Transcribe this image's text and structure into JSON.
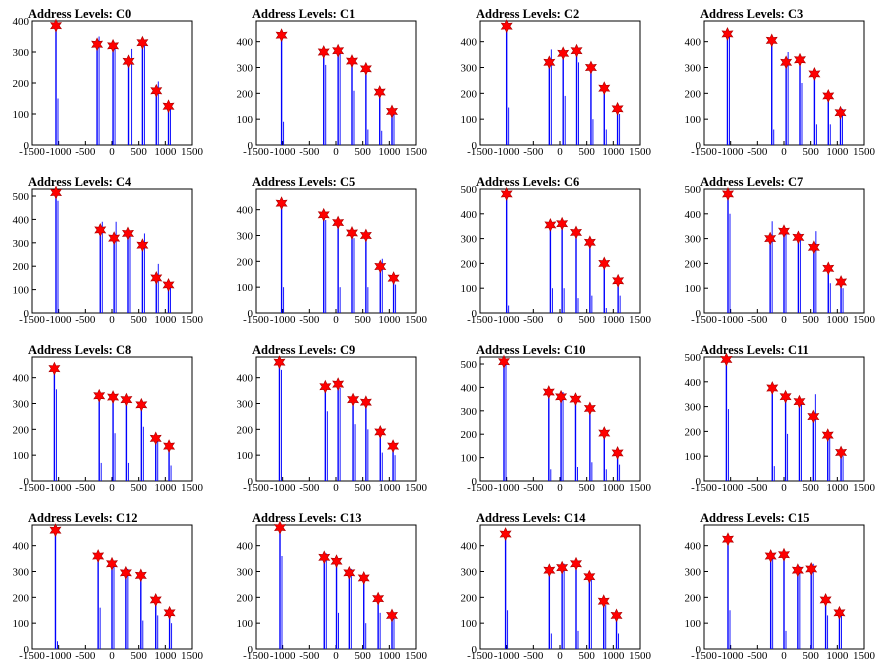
{
  "figure": {
    "colors": {
      "peak_line": "#0000ff",
      "marker": "#ff0000",
      "axes": "#000000"
    },
    "marker_shape": "star"
  },
  "chart_data": [
    {
      "type": "bar",
      "title": "Address Levels: C0",
      "xlim": [
        -1500,
        1500
      ],
      "ylim": [
        0,
        400
      ],
      "yticks": [
        0,
        100,
        200,
        300,
        400
      ],
      "xticks": [
        -1500,
        -1000,
        -500,
        0,
        500,
        1000,
        1500
      ],
      "peaks": [
        [
          -1050,
          385
        ],
        [
          -280,
          325
        ],
        [
          20,
          320
        ],
        [
          310,
          270
        ],
        [
          570,
          330
        ],
        [
          830,
          175
        ],
        [
          1060,
          125
        ]
      ],
      "secondary_peaks": [
        [
          -1050,
          150
        ],
        [
          -280,
          350
        ],
        [
          20,
          320
        ],
        [
          330,
          310
        ],
        [
          570,
          320
        ],
        [
          830,
          205
        ],
        [
          1060,
          130
        ]
      ]
    },
    {
      "type": "bar",
      "title": "Address Levels: C1",
      "xlim": [
        -1500,
        1500
      ],
      "ylim": [
        0,
        480
      ],
      "yticks": [
        0,
        100,
        200,
        300,
        400
      ],
      "xticks": [
        -1500,
        -1000,
        -500,
        0,
        500,
        1000,
        1500
      ],
      "peaks": [
        [
          -1020,
          425
        ],
        [
          -230,
          360
        ],
        [
          40,
          365
        ],
        [
          300,
          325
        ],
        [
          560,
          295
        ],
        [
          820,
          205
        ],
        [
          1050,
          130
        ]
      ],
      "secondary_peaks": [
        [
          -1020,
          90
        ],
        [
          -230,
          310
        ],
        [
          40,
          360
        ],
        [
          300,
          210
        ],
        [
          560,
          60
        ],
        [
          820,
          55
        ],
        [
          1050,
          120
        ]
      ]
    },
    {
      "type": "bar",
      "title": "Address Levels: C2",
      "xlim": [
        -1500,
        1500
      ],
      "ylim": [
        0,
        480
      ],
      "yticks": [
        0,
        100,
        200,
        300,
        400
      ],
      "xticks": [
        -1500,
        -1000,
        -500,
        0,
        500,
        1000,
        1500
      ],
      "peaks": [
        [
          -1000,
          460
        ],
        [
          -200,
          320
        ],
        [
          60,
          355
        ],
        [
          310,
          365
        ],
        [
          580,
          300
        ],
        [
          830,
          220
        ],
        [
          1080,
          140
        ]
      ],
      "secondary_peaks": [
        [
          -1000,
          145
        ],
        [
          -200,
          370
        ],
        [
          60,
          190
        ],
        [
          310,
          320
        ],
        [
          580,
          100
        ],
        [
          830,
          60
        ],
        [
          1080,
          120
        ]
      ]
    },
    {
      "type": "bar",
      "title": "Address Levels: C3",
      "xlim": [
        -1500,
        1500
      ],
      "ylim": [
        0,
        480
      ],
      "yticks": [
        0,
        100,
        200,
        300,
        400
      ],
      "xticks": [
        -1500,
        -1000,
        -500,
        0,
        500,
        1000,
        1500
      ],
      "peaks": [
        [
          -1060,
          430
        ],
        [
          -230,
          405
        ],
        [
          40,
          320
        ],
        [
          300,
          330
        ],
        [
          570,
          275
        ],
        [
          830,
          190
        ],
        [
          1060,
          125
        ]
      ],
      "secondary_peaks": [
        [
          -1060,
          420
        ],
        [
          -230,
          60
        ],
        [
          40,
          360
        ],
        [
          300,
          240
        ],
        [
          570,
          80
        ],
        [
          830,
          80
        ],
        [
          1060,
          140
        ]
      ]
    },
    {
      "type": "bar",
      "title": "Address Levels: C4",
      "xlim": [
        -1500,
        1500
      ],
      "ylim": [
        0,
        530
      ],
      "yticks": [
        0,
        100,
        200,
        300,
        400,
        500
      ],
      "xticks": [
        -1500,
        -1000,
        -500,
        0,
        500,
        1000,
        1500
      ],
      "peaks": [
        [
          -1050,
          515
        ],
        [
          -220,
          355
        ],
        [
          40,
          320
        ],
        [
          300,
          340
        ],
        [
          570,
          290
        ],
        [
          830,
          150
        ],
        [
          1060,
          120
        ]
      ],
      "secondary_peaks": [
        [
          -1050,
          480
        ],
        [
          -220,
          390
        ],
        [
          40,
          390
        ],
        [
          300,
          350
        ],
        [
          570,
          340
        ],
        [
          830,
          210
        ],
        [
          1060,
          130
        ]
      ]
    },
    {
      "type": "bar",
      "title": "Address Levels: C5",
      "xlim": [
        -1500,
        1500
      ],
      "ylim": [
        0,
        480
      ],
      "yticks": [
        0,
        100,
        200,
        300,
        400
      ],
      "xticks": [
        -1500,
        -1000,
        -500,
        0,
        500,
        1000,
        1500
      ],
      "peaks": [
        [
          -1020,
          425
        ],
        [
          -230,
          380
        ],
        [
          40,
          350
        ],
        [
          300,
          310
        ],
        [
          560,
          300
        ],
        [
          830,
          180
        ],
        [
          1080,
          135
        ]
      ],
      "secondary_peaks": [
        [
          -1020,
          100
        ],
        [
          -230,
          360
        ],
        [
          40,
          100
        ],
        [
          300,
          290
        ],
        [
          560,
          100
        ],
        [
          830,
          210
        ],
        [
          1080,
          110
        ]
      ]
    },
    {
      "type": "bar",
      "title": "Address Levels: C6",
      "xlim": [
        -1500,
        1500
      ],
      "ylim": [
        0,
        500
      ],
      "yticks": [
        0,
        100,
        200,
        300,
        400,
        500
      ],
      "xticks": [
        -1500,
        -1000,
        -500,
        0,
        500,
        1000,
        1500
      ],
      "peaks": [
        [
          -1000,
          480
        ],
        [
          -180,
          355
        ],
        [
          40,
          360
        ],
        [
          300,
          325
        ],
        [
          560,
          285
        ],
        [
          830,
          200
        ],
        [
          1090,
          130
        ]
      ],
      "secondary_peaks": [
        [
          -1000,
          30
        ],
        [
          -180,
          100
        ],
        [
          40,
          100
        ],
        [
          300,
          60
        ],
        [
          560,
          70
        ],
        [
          830,
          20
        ],
        [
          1090,
          70
        ]
      ]
    },
    {
      "type": "bar",
      "title": "Address Levels: C7",
      "xlim": [
        -1500,
        1500
      ],
      "ylim": [
        0,
        500
      ],
      "yticks": [
        0,
        100,
        200,
        300,
        400,
        500
      ],
      "xticks": [
        -1500,
        -1000,
        -500,
        0,
        500,
        1000,
        1500
      ],
      "peaks": [
        [
          -1050,
          480
        ],
        [
          -260,
          300
        ],
        [
          0,
          330
        ],
        [
          270,
          305
        ],
        [
          560,
          265
        ],
        [
          830,
          180
        ],
        [
          1070,
          125
        ]
      ],
      "secondary_peaks": [
        [
          -1050,
          400
        ],
        [
          -260,
          370
        ],
        [
          0,
          330
        ],
        [
          270,
          320
        ],
        [
          560,
          330
        ],
        [
          830,
          120
        ],
        [
          1070,
          100
        ]
      ]
    },
    {
      "type": "bar",
      "title": "Address Levels: C8",
      "xlim": [
        -1500,
        1500
      ],
      "ylim": [
        0,
        480
      ],
      "yticks": [
        0,
        100,
        200,
        300,
        400
      ],
      "xticks": [
        -1500,
        -1000,
        -500,
        0,
        500,
        1000,
        1500
      ],
      "peaks": [
        [
          -1080,
          435
        ],
        [
          -240,
          330
        ],
        [
          20,
          325
        ],
        [
          270,
          315
        ],
        [
          550,
          295
        ],
        [
          820,
          165
        ],
        [
          1070,
          135
        ]
      ],
      "secondary_peaks": [
        [
          -1080,
          355
        ],
        [
          -240,
          70
        ],
        [
          20,
          185
        ],
        [
          270,
          70
        ],
        [
          550,
          210
        ],
        [
          820,
          165
        ],
        [
          1070,
          60
        ]
      ]
    },
    {
      "type": "bar",
      "title": "Address Levels: C9",
      "xlim": [
        -1500,
        1500
      ],
      "ylim": [
        0,
        480
      ],
      "yticks": [
        0,
        100,
        200,
        300,
        400
      ],
      "xticks": [
        -1500,
        -1000,
        -500,
        0,
        500,
        1000,
        1500
      ],
      "peaks": [
        [
          -1060,
          460
        ],
        [
          -200,
          365
        ],
        [
          40,
          375
        ],
        [
          320,
          315
        ],
        [
          560,
          305
        ],
        [
          830,
          190
        ],
        [
          1070,
          135
        ]
      ],
      "secondary_peaks": [
        [
          -1060,
          430
        ],
        [
          -200,
          270
        ],
        [
          40,
          360
        ],
        [
          320,
          220
        ],
        [
          560,
          200
        ],
        [
          830,
          110
        ],
        [
          1070,
          100
        ]
      ]
    },
    {
      "type": "bar",
      "title": "Address Levels: C10",
      "xlim": [
        -1500,
        1500
      ],
      "ylim": [
        0,
        530
      ],
      "yticks": [
        0,
        100,
        200,
        300,
        400,
        500
      ],
      "xticks": [
        -1500,
        -1000,
        -500,
        0,
        500,
        1000,
        1500
      ],
      "peaks": [
        [
          -1050,
          510
        ],
        [
          -210,
          380
        ],
        [
          20,
          360
        ],
        [
          290,
          350
        ],
        [
          560,
          310
        ],
        [
          830,
          205
        ],
        [
          1080,
          120
        ]
      ],
      "secondary_peaks": [
        [
          -1050,
          500
        ],
        [
          -210,
          50
        ],
        [
          20,
          380
        ],
        [
          290,
          60
        ],
        [
          560,
          80
        ],
        [
          830,
          50
        ],
        [
          1080,
          70
        ]
      ]
    },
    {
      "type": "bar",
      "title": "Address Levels: C11",
      "xlim": [
        -1500,
        1500
      ],
      "ylim": [
        0,
        500
      ],
      "yticks": [
        0,
        100,
        200,
        300,
        400,
        500
      ],
      "xticks": [
        -1500,
        -1000,
        -500,
        0,
        500,
        1000,
        1500
      ],
      "peaks": [
        [
          -1080,
          490
        ],
        [
          -220,
          375
        ],
        [
          30,
          340
        ],
        [
          290,
          320
        ],
        [
          550,
          260
        ],
        [
          820,
          185
        ],
        [
          1070,
          115
        ]
      ],
      "secondary_peaks": [
        [
          -1080,
          290
        ],
        [
          -220,
          60
        ],
        [
          30,
          190
        ],
        [
          290,
          320
        ],
        [
          550,
          350
        ],
        [
          820,
          180
        ],
        [
          1070,
          100
        ]
      ]
    },
    {
      "type": "bar",
      "title": "Address Levels: C12",
      "xlim": [
        -1500,
        1500
      ],
      "ylim": [
        0,
        480
      ],
      "yticks": [
        0,
        100,
        200,
        300,
        400
      ],
      "xticks": [
        -1500,
        -1000,
        -500,
        0,
        500,
        1000,
        1500
      ],
      "peaks": [
        [
          -1060,
          460
        ],
        [
          -260,
          360
        ],
        [
          0,
          330
        ],
        [
          260,
          295
        ],
        [
          540,
          285
        ],
        [
          820,
          190
        ],
        [
          1080,
          140
        ]
      ],
      "secondary_peaks": [
        [
          -1060,
          30
        ],
        [
          -260,
          160
        ],
        [
          0,
          320
        ],
        [
          260,
          310
        ],
        [
          540,
          110
        ],
        [
          820,
          130
        ],
        [
          1080,
          100
        ]
      ]
    },
    {
      "type": "bar",
      "title": "Address Levels: C13",
      "xlim": [
        -1500,
        1500
      ],
      "ylim": [
        0,
        480
      ],
      "yticks": [
        0,
        100,
        200,
        300,
        400
      ],
      "xticks": [
        -1500,
        -1000,
        -500,
        0,
        500,
        1000,
        1500
      ],
      "peaks": [
        [
          -1050,
          470
        ],
        [
          -220,
          355
        ],
        [
          10,
          340
        ],
        [
          250,
          295
        ],
        [
          520,
          275
        ],
        [
          790,
          195
        ],
        [
          1050,
          130
        ]
      ],
      "secondary_peaks": [
        [
          -1050,
          360
        ],
        [
          -220,
          370
        ],
        [
          10,
          140
        ],
        [
          250,
          310
        ],
        [
          520,
          100
        ],
        [
          790,
          140
        ],
        [
          1050,
          120
        ]
      ]
    },
    {
      "type": "bar",
      "title": "Address Levels: C14",
      "xlim": [
        -1500,
        1500
      ],
      "ylim": [
        0,
        480
      ],
      "yticks": [
        0,
        100,
        200,
        300,
        400
      ],
      "xticks": [
        -1500,
        -1000,
        -500,
        0,
        500,
        1000,
        1500
      ],
      "peaks": [
        [
          -1020,
          445
        ],
        [
          -200,
          305
        ],
        [
          40,
          315
        ],
        [
          300,
          330
        ],
        [
          550,
          280
        ],
        [
          820,
          185
        ],
        [
          1060,
          130
        ]
      ],
      "secondary_peaks": [
        [
          -1020,
          150
        ],
        [
          -200,
          60
        ],
        [
          40,
          330
        ],
        [
          300,
          70
        ],
        [
          550,
          290
        ],
        [
          820,
          170
        ],
        [
          1060,
          60
        ]
      ]
    },
    {
      "type": "bar",
      "title": "Address Levels: C15",
      "xlim": [
        -1500,
        1500
      ],
      "ylim": [
        0,
        480
      ],
      "yticks": [
        0,
        100,
        200,
        300,
        400
      ],
      "xticks": [
        -1500,
        -1000,
        -500,
        0,
        500,
        1000,
        1500
      ],
      "peaks": [
        [
          -1050,
          425
        ],
        [
          -250,
          360
        ],
        [
          0,
          365
        ],
        [
          260,
          305
        ],
        [
          510,
          310
        ],
        [
          780,
          190
        ],
        [
          1040,
          140
        ]
      ],
      "secondary_peaks": [
        [
          -1050,
          150
        ],
        [
          -250,
          360
        ],
        [
          0,
          70
        ],
        [
          260,
          320
        ],
        [
          510,
          330
        ],
        [
          780,
          130
        ],
        [
          1040,
          150
        ]
      ]
    }
  ]
}
